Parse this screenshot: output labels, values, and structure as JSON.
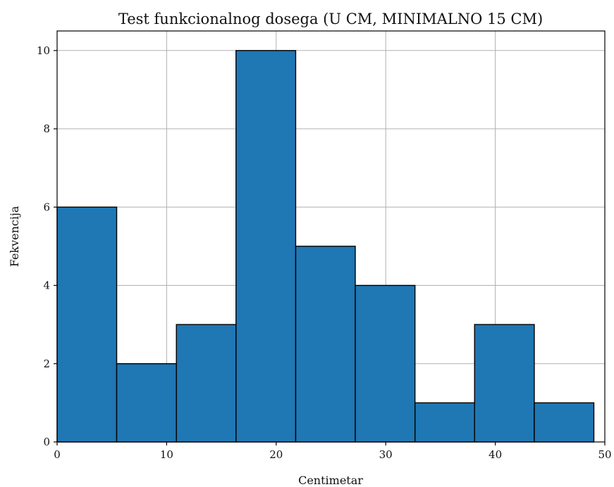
{
  "chart_data": {
    "type": "bar",
    "title": "Test funkcionalnog dosega (U CM, MINIMALNO 15 CM)",
    "xlabel": "Centimetar",
    "ylabel": "Fekvencija",
    "xlim": [
      0,
      50
    ],
    "ylim": [
      0,
      10.5
    ],
    "xticks": [
      0,
      10,
      20,
      30,
      40,
      50
    ],
    "yticks": [
      0,
      2,
      4,
      6,
      8,
      10
    ],
    "grid": true,
    "bar_color": "#1f77b4",
    "bins": [
      {
        "x0": 0.0,
        "x1": 5.44,
        "count": 6
      },
      {
        "x0": 5.44,
        "x1": 10.89,
        "count": 2
      },
      {
        "x0": 10.89,
        "x1": 16.33,
        "count": 3
      },
      {
        "x0": 16.33,
        "x1": 21.78,
        "count": 10
      },
      {
        "x0": 21.78,
        "x1": 27.22,
        "count": 5
      },
      {
        "x0": 27.22,
        "x1": 32.67,
        "count": 4
      },
      {
        "x0": 32.67,
        "x1": 38.11,
        "count": 1
      },
      {
        "x0": 38.11,
        "x1": 43.56,
        "count": 3
      },
      {
        "x0": 43.56,
        "x1": 49.0,
        "count": 1
      }
    ]
  }
}
